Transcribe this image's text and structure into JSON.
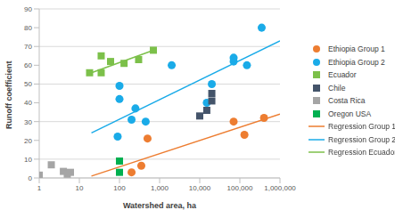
{
  "chart_data": {
    "type": "scatter",
    "log": "x",
    "grid": true,
    "legend": "right",
    "x_label": "Watershed area, ha",
    "y_label": "Runoff coefficient",
    "xlim": [
      1,
      1000000
    ],
    "xticks": [
      1,
      10,
      100,
      {
        "value": 1000,
        "label": "1,000"
      },
      {
        "value": 10000,
        "label": "10,000"
      },
      {
        "value": 100000,
        "label": "100,000"
      },
      {
        "value": 1000000,
        "label": "1,000,000"
      }
    ],
    "ylim": [
      0,
      90
    ],
    "yticks": [
      0,
      10,
      20,
      30,
      40,
      50,
      60,
      70,
      80,
      90
    ],
    "series": [
      {
        "name": "Ethiopia Group 1",
        "type": "scatter",
        "marker": "circle",
        "color": "#ed7d31",
        "x": [
          200,
          350,
          500,
          70000,
          130000,
          400000
        ],
        "values": [
          3,
          6.5,
          21,
          30,
          23,
          32
        ]
      },
      {
        "name": "Ethiopia Group 2",
        "type": "scatter",
        "marker": "circle",
        "color": "#1aabe8",
        "x": [
          90,
          100,
          100,
          200,
          250,
          450,
          2000,
          15000,
          20000,
          70000,
          70000,
          150000,
          350000
        ],
        "values": [
          22,
          49,
          42,
          31,
          37,
          30,
          60,
          40,
          50,
          62,
          64,
          60,
          80
        ]
      },
      {
        "name": "Ecuador",
        "type": "scatter",
        "marker": "square",
        "color": "#7cc04a",
        "x": [
          18,
          35,
          35,
          60,
          130,
          300,
          700
        ],
        "values": [
          56,
          56,
          65,
          62,
          61,
          63,
          68
        ]
      },
      {
        "name": "Chile",
        "type": "scatter",
        "marker": "square",
        "color": "#44546a",
        "x": [
          10000,
          15000,
          20000,
          20000
        ],
        "values": [
          33,
          36,
          41,
          45
        ]
      },
      {
        "name": "Costa Rica",
        "type": "scatter",
        "marker": "square",
        "color": "#a5a5a5",
        "x": [
          1,
          2,
          4,
          5,
          6
        ],
        "values": [
          1.5,
          7,
          3.5,
          2,
          3
        ]
      },
      {
        "name": "Oregon USA",
        "type": "scatter",
        "marker": "square",
        "color": "#00b050",
        "x": [
          100,
          100
        ],
        "values": [
          9,
          3
        ]
      },
      {
        "name": "Regression Group 1",
        "type": "line",
        "color": "#ed7d31",
        "x": [
          20,
          1000000
        ],
        "values": [
          1,
          34
        ]
      },
      {
        "name": "Regression Group 2",
        "type": "line",
        "color": "#1aabe8",
        "x": [
          20,
          1000000
        ],
        "values": [
          24,
          73
        ]
      },
      {
        "name": "Regression Ecuador",
        "type": "line",
        "color": "#7cc04a",
        "x": [
          20,
          700
        ],
        "values": [
          56,
          68
        ]
      }
    ]
  }
}
